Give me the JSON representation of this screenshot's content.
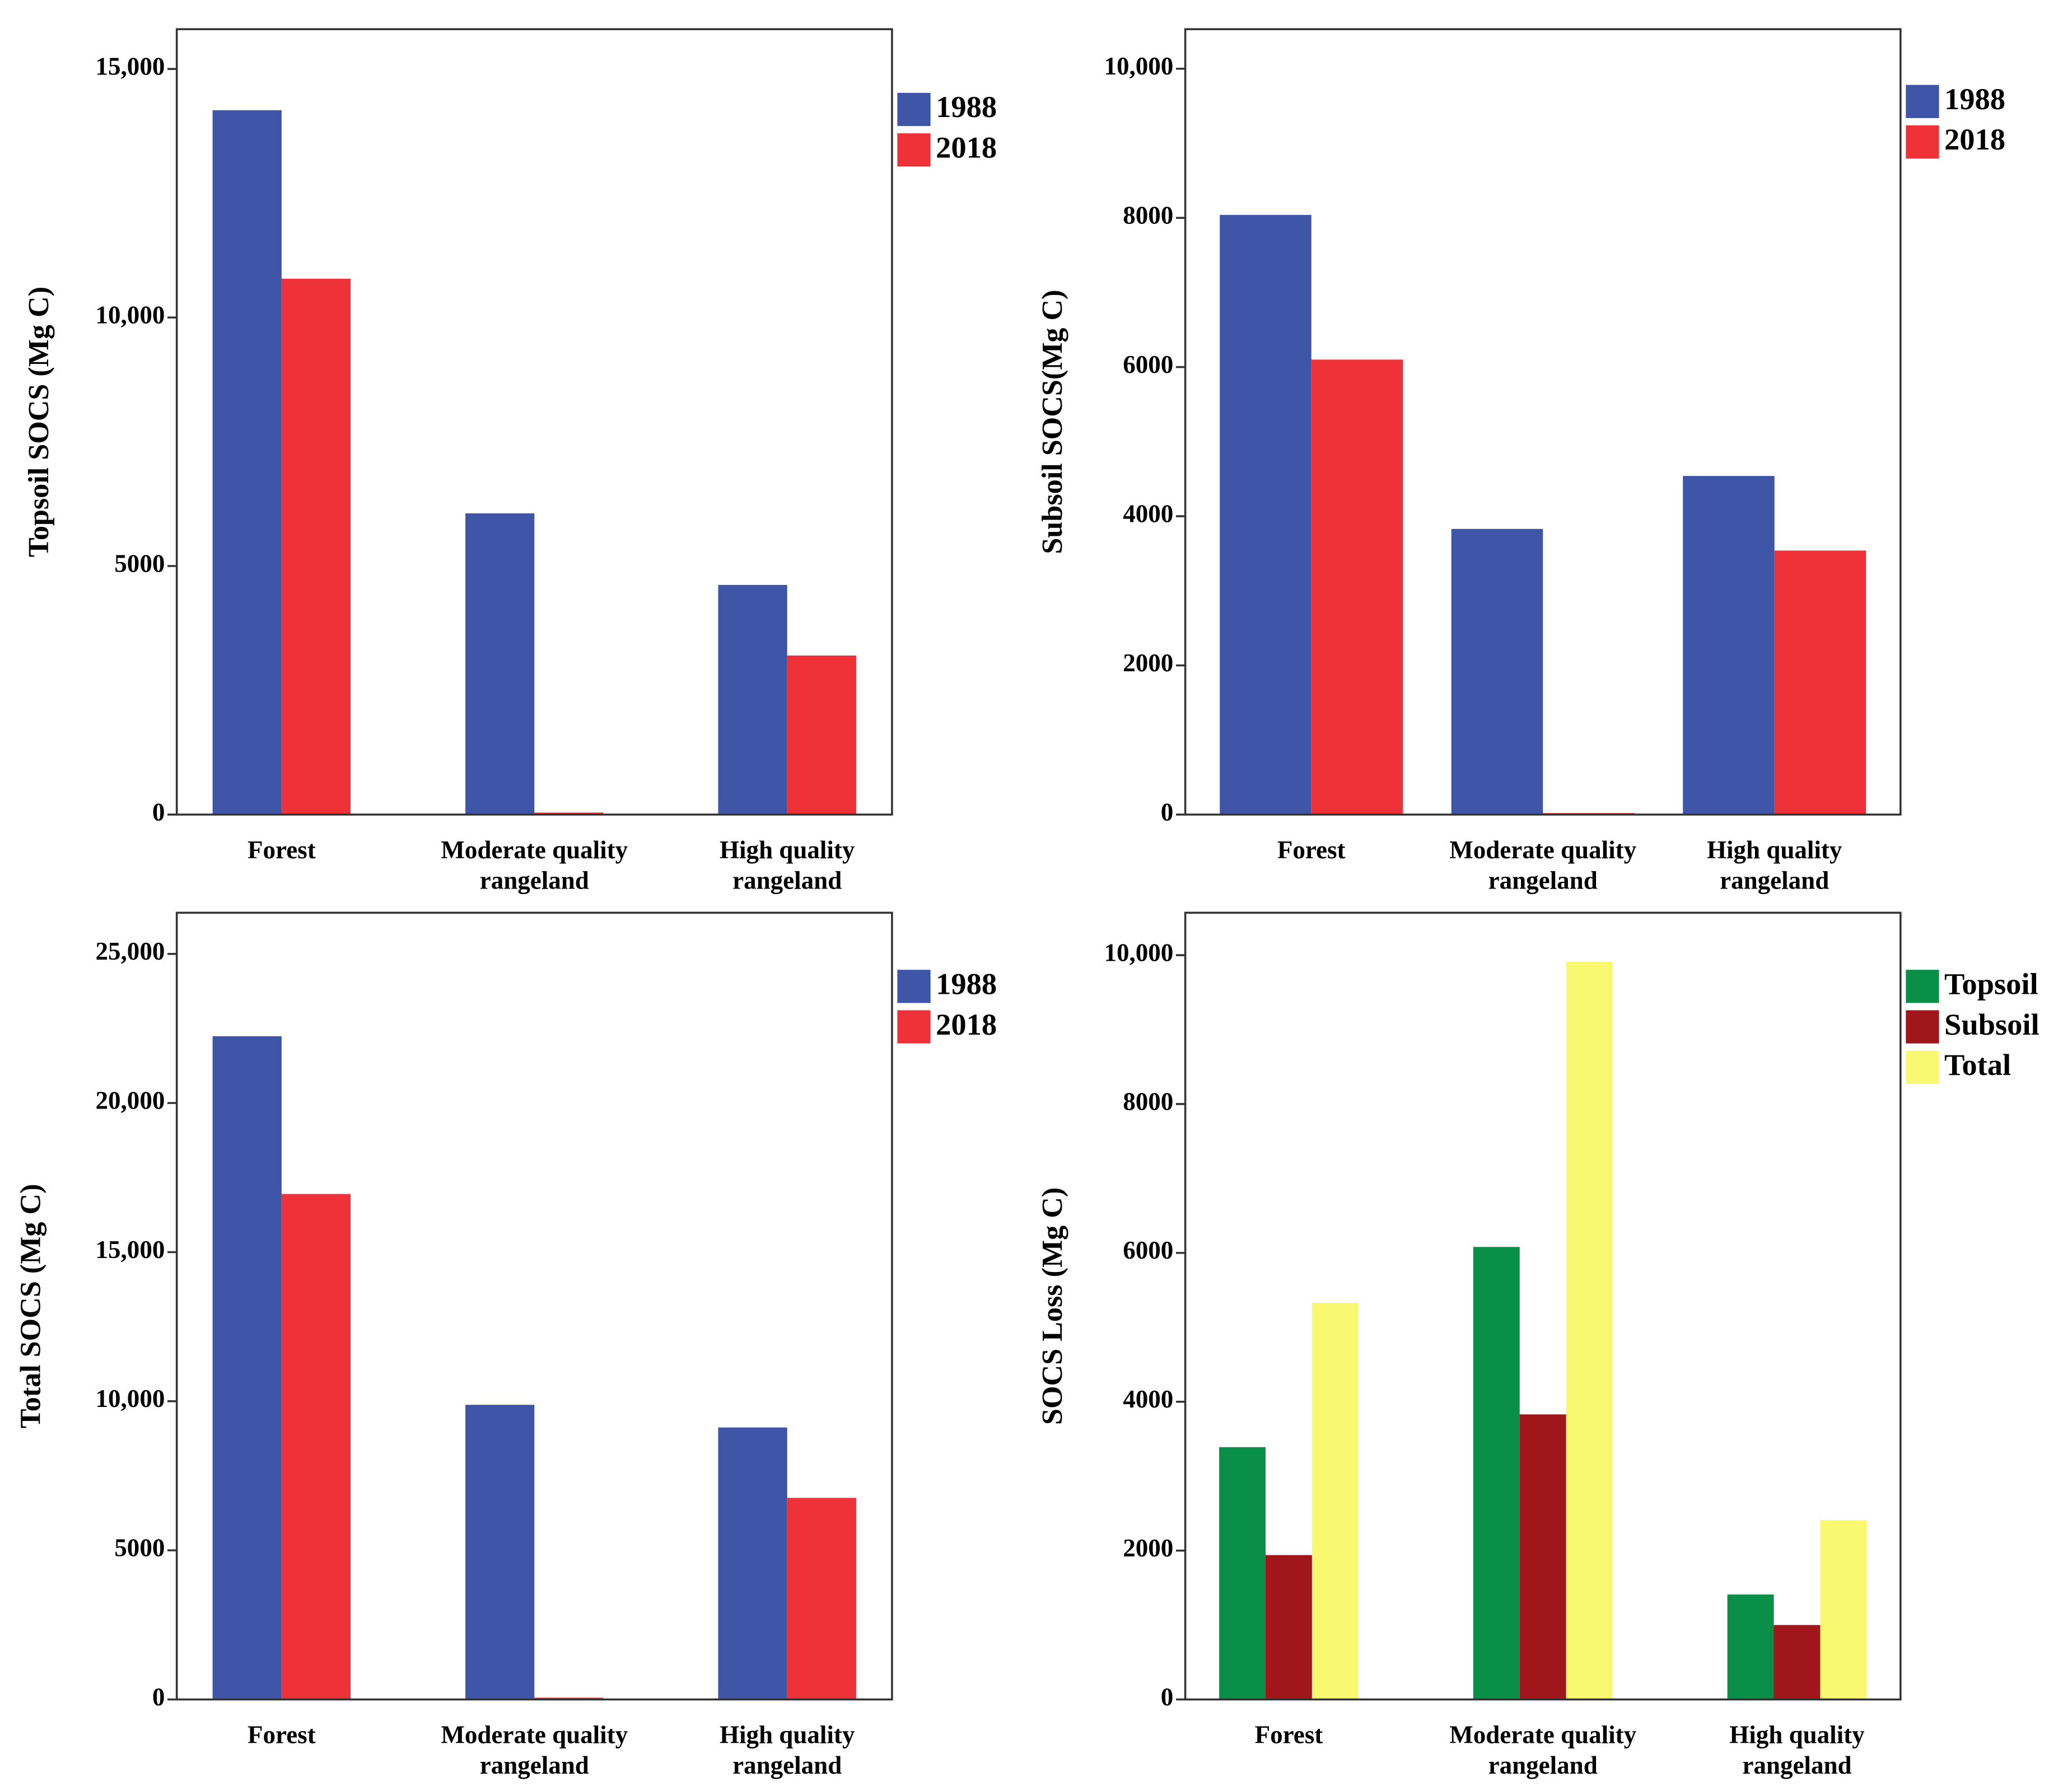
{
  "chart_data": [
    {
      "type": "bar",
      "y_label": "Topsoil SOCS (Mg C)",
      "categories": [
        "Forest",
        "Moderate quality rangeland",
        "High quality rangeland"
      ],
      "series": [
        {
          "name": "1988",
          "color": "#3f56a8",
          "values": [
            14170,
            6060,
            4620
          ]
        },
        {
          "name": "2018",
          "color": "#ee3237",
          "values": [
            10780,
            40,
            3200
          ]
        }
      ],
      "ylim": [
        0,
        15800
      ],
      "yticks": [
        0,
        5000,
        {
          "value": 10000,
          "label": "10,000"
        },
        {
          "value": 15000,
          "label": "15,000"
        }
      ]
    },
    {
      "type": "bar",
      "y_label": "Subsoil SOCS(Mg C)",
      "categories": [
        "Forest",
        "Moderate quality rangeland",
        "High quality rangeland"
      ],
      "series": [
        {
          "name": "1988",
          "color": "#3f56a8",
          "values": [
            8040,
            3830,
            4540
          ]
        },
        {
          "name": "2018",
          "color": "#ee3237",
          "values": [
            6100,
            20,
            3540
          ]
        }
      ],
      "ylim": [
        0,
        10530
      ],
      "yticks": [
        0,
        2000,
        4000,
        6000,
        8000,
        {
          "value": 10000,
          "label": "10,000"
        }
      ]
    },
    {
      "type": "bar",
      "y_label": "Total SOCS (Mg C)",
      "categories": [
        "Forest",
        "Moderate quality rangeland",
        "High quality rangeland"
      ],
      "series": [
        {
          "name": "1988",
          "color": "#3f56a8",
          "values": [
            22240,
            9880,
            9120
          ]
        },
        {
          "name": "2018",
          "color": "#ee3237",
          "values": [
            16950,
            60,
            6760
          ]
        }
      ],
      "ylim": [
        0,
        26380
      ],
      "yticks": [
        0,
        5000,
        {
          "value": 10000,
          "label": "10,000"
        },
        {
          "value": 15000,
          "label": "15,000"
        },
        {
          "value": 20000,
          "label": "20,000"
        },
        {
          "value": 25000,
          "label": "25,000"
        }
      ]
    },
    {
      "type": "bar",
      "y_label": "SOCS Loss (Mg C)",
      "categories": [
        "Forest",
        "Moderate quality rangeland",
        "High quality rangeland"
      ],
      "series": [
        {
          "name": "Topsoil",
          "color": "#0a8f48",
          "values": [
            3390,
            6080,
            1410
          ]
        },
        {
          "name": "Subsoil",
          "color": "#a0161a",
          "values": [
            1940,
            3830,
            1000
          ]
        },
        {
          "name": "Total",
          "color": "#f9f871",
          "values": [
            5330,
            9910,
            2410
          ]
        }
      ],
      "ylim": [
        0,
        10570
      ],
      "yticks": [
        0,
        2000,
        4000,
        6000,
        8000,
        {
          "value": 10000,
          "label": "10,000"
        }
      ]
    }
  ]
}
